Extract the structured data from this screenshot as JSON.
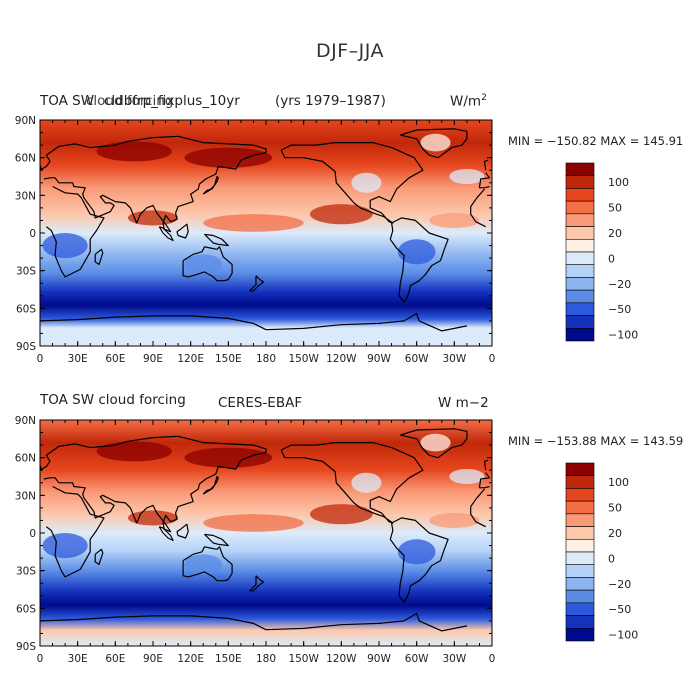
{
  "page_title": "DJF–JJA",
  "lat_labels": [
    "90N",
    "60N",
    "30N",
    "0",
    "30S",
    "60S",
    "90S"
  ],
  "lon_labels": [
    "0",
    "30E",
    "60E",
    "90E",
    "120E",
    "150E",
    "180",
    "150W",
    "120W",
    "90W",
    "60W",
    "30W",
    "0"
  ],
  "colorbar": {
    "colors": [
      "#8b0000",
      "#c0280a",
      "#e6461e",
      "#f46e46",
      "#fa9a78",
      "#fcc8ac",
      "#fff0e6",
      "#dcebfa",
      "#b4d2f8",
      "#8cb4f0",
      "#5a8ce6",
      "#2d5adc",
      "#1432be",
      "#000a8c"
    ],
    "labels": [
      "100",
      "50",
      "20",
      "0",
      "−20",
      "−50",
      "−100"
    ]
  },
  "panels": [
    {
      "title_left": "TOA SW",
      "title_overlap": "cloud forcing",
      "title_case": "cldbfrp_fixplus_10yr",
      "title_years": "(yrs 1979–1987)",
      "units": "W/m",
      "units_sup": "2",
      "stats": "MIN = −150.82 MAX = 145.91"
    },
    {
      "title_left": "TOA SW cloud forcing",
      "title_center": "CERES-EBAF",
      "units": "W m−2",
      "stats": "MIN = −153.88 MAX = 143.59"
    }
  ]
}
